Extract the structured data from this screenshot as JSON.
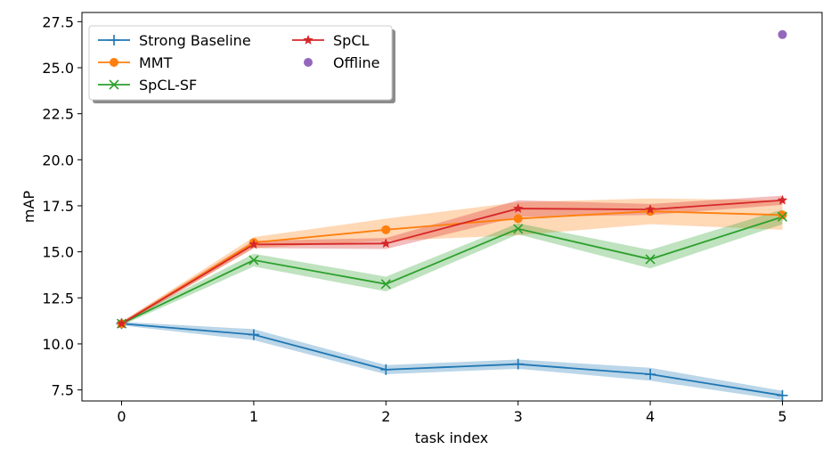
{
  "chart_data": {
    "type": "line",
    "title": "",
    "xlabel": "task index",
    "ylabel": "mAP",
    "x": [
      0,
      1,
      2,
      3,
      4,
      5
    ],
    "xticks": [
      "0",
      "1",
      "2",
      "3",
      "4",
      "5"
    ],
    "yticks": [
      "7.5",
      "10.0",
      "12.5",
      "15.0",
      "17.5",
      "20.0",
      "22.5",
      "25.0",
      "27.5"
    ],
    "xlim": [
      -0.3,
      5.3
    ],
    "ylim": [
      6.9,
      28.0
    ],
    "grid": false,
    "legend_position": "top-left",
    "series": [
      {
        "name": "Strong Baseline",
        "color": "#1f77b4",
        "marker": "plus",
        "values": [
          11.1,
          10.5,
          8.6,
          8.9,
          8.35,
          7.2
        ],
        "band_lower": [
          11.0,
          10.2,
          8.35,
          8.65,
          8.0,
          6.95
        ],
        "band_upper": [
          11.2,
          10.8,
          8.85,
          9.15,
          8.7,
          7.45
        ]
      },
      {
        "name": "MMT",
        "color": "#ff7f0e",
        "marker": "circle",
        "values": [
          11.1,
          15.5,
          16.2,
          16.8,
          17.2,
          17.0
        ],
        "band_lower": [
          11.0,
          15.2,
          15.6,
          15.9,
          16.5,
          16.2
        ],
        "band_upper": [
          11.2,
          15.8,
          16.8,
          17.7,
          17.9,
          17.8
        ]
      },
      {
        "name": "SpCL-SF",
        "color": "#2ca02c",
        "marker": "x",
        "values": [
          11.1,
          14.55,
          13.25,
          16.25,
          14.6,
          16.9
        ],
        "band_lower": [
          11.0,
          14.2,
          12.85,
          15.95,
          14.1,
          16.5
        ],
        "band_upper": [
          11.2,
          14.9,
          13.65,
          16.55,
          15.1,
          17.3
        ]
      },
      {
        "name": "SpCL",
        "color": "#d62728",
        "marker": "star",
        "values": [
          11.1,
          15.4,
          15.45,
          17.35,
          17.3,
          17.8
        ],
        "band_lower": [
          11.0,
          15.2,
          15.15,
          16.9,
          17.0,
          17.55
        ],
        "band_upper": [
          11.2,
          15.6,
          15.75,
          17.8,
          17.6,
          18.05
        ]
      },
      {
        "name": "Offline",
        "color": "#9467bd",
        "marker": "circle",
        "points": [
          {
            "x": 5,
            "y": 26.8
          }
        ]
      }
    ]
  }
}
